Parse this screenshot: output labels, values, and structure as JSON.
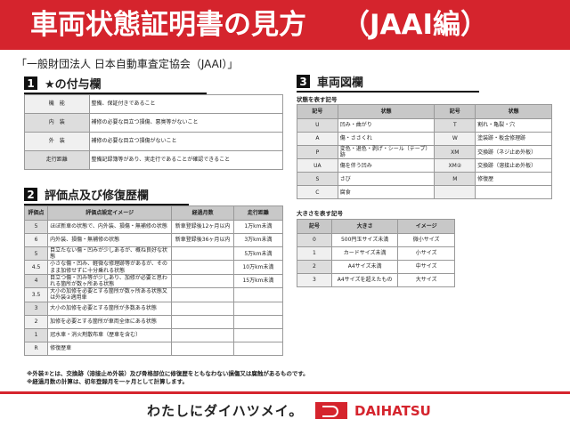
{
  "header": {
    "title": "車両状態証明書の見方",
    "subtitle": "（JAAI編）"
  },
  "organization": "「一般財団法人 日本自動車査定協会（JAAI）」",
  "section1": {
    "num": "1",
    "title": "★の付与欄",
    "rows": [
      [
        "機　能",
        "整備、保証付きであること"
      ],
      [
        "内　装",
        "補修の必要な目立つ損傷、悪臭等がないこと"
      ],
      [
        "外　装",
        "補修の必要な目立つ損傷がないこと"
      ],
      [
        "走行距離",
        "整備記録簿等があり、実走行であることが確認できること"
      ]
    ]
  },
  "section2": {
    "num": "2",
    "title": "評価点及び修復歴欄",
    "headers": [
      "評価点",
      "評価点設定イメージ",
      "経過月数",
      "走行距離"
    ],
    "rows": [
      [
        "5",
        "ほぼ新車の状態で、内外装、損傷・無補修の状態",
        "新車登録後12ヶ月以内",
        "1万km未満"
      ],
      [
        "6",
        "内外装、損傷・無補修の状態",
        "新車登録後36ヶ月以内",
        "3万km未満"
      ],
      [
        "5",
        "目立たない傷・凹みが少しあるが、概ね良好な状態",
        "",
        "5万km未満"
      ],
      [
        "4.5",
        "小さな傷・凹み、軽微な修理跡等があるが、そのまま加修せずに十分乗れる状態",
        "",
        "10万km未満"
      ],
      [
        "4",
        "目立つ傷・凹み等が少しあり、加修が必要と思われる箇所が数ヶ所ある状態",
        "",
        "15万km未満"
      ],
      [
        "3.5",
        "大小の加修を必要とする箇所が数ヶ所ある状態又は外装②適用車",
        "",
        ""
      ],
      [
        "3",
        "大小の加修を必要とする箇所が多数ある状態",
        "",
        ""
      ],
      [
        "2",
        "加修を必要とする箇所が車両全体にある状態",
        "",
        ""
      ],
      [
        "1",
        "冠水車・消火剤散布車（歴車を含む）",
        "",
        ""
      ],
      [
        "R",
        "修復歴車",
        "",
        ""
      ]
    ]
  },
  "section3": {
    "num": "3",
    "title": "車両図欄",
    "state_label": "状態を表す記号",
    "state_headers": [
      "記号",
      "状態",
      "記号",
      "状態"
    ],
    "state_rows": [
      [
        "U",
        "凹み・曲がり",
        "T",
        "割れ・亀裂・穴"
      ],
      [
        "A",
        "傷・ささくれ",
        "W",
        "塗装跡・板金修理跡"
      ],
      [
        "P",
        "変色・退色・剥げ・シール（テープ）跡",
        "XM",
        "交換跡（ネジ止め外板）"
      ],
      [
        "UA",
        "傷を伴う凹み",
        "XM②",
        "交換跡（溶接止め外板）"
      ],
      [
        "S",
        "さび",
        "M",
        "修復歴"
      ],
      [
        "C",
        "腐食",
        "",
        ""
      ]
    ],
    "size_label": "大きさを表す記号",
    "size_headers": [
      "記号",
      "大きさ",
      "イメージ"
    ],
    "size_rows": [
      [
        "0",
        "500円玉サイズ未満",
        "微小サイズ"
      ],
      [
        "1",
        "カードサイズ未満",
        "小サイズ"
      ],
      [
        "2",
        "A4サイズ未満",
        "中サイズ"
      ],
      [
        "3",
        "A4サイズを超えたもの",
        "大サイズ"
      ]
    ]
  },
  "notes": [
    "※外装②とは、交換跡（溶接止め外装）及び骨格部位に修復歴をともなわない損傷又は腐蝕があるものです。",
    "※経過月数の計算は、初年登録月を一ヶ月として計算します。"
  ],
  "footer": {
    "slogan": "わたしにダイハツメイ。",
    "brand": "DAIHATSU"
  },
  "colors": {
    "accent": "#d5242d"
  }
}
